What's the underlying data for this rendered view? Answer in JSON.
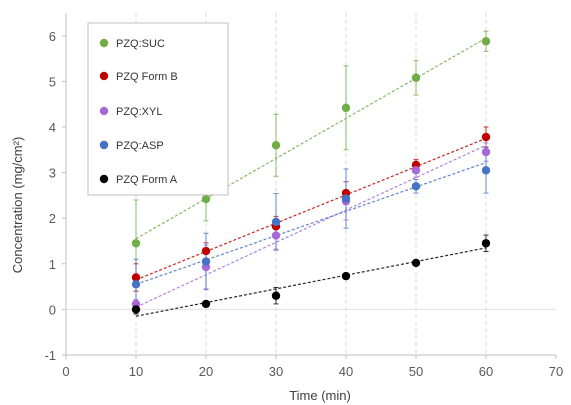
{
  "chart_data": {
    "type": "scatter",
    "xlabel": "Time (min)",
    "ylabel": "Concentration (mg/cm²)",
    "xlim": [
      0,
      70
    ],
    "ylim": [
      -1,
      6.5
    ],
    "x_ticks": [
      "0",
      "10",
      "20",
      "30",
      "40",
      "50",
      "60",
      "70"
    ],
    "y_ticks": [
      "-1",
      "0",
      "1",
      "2",
      "3",
      "4",
      "5",
      "6"
    ],
    "grid": "vertical dashed",
    "legend_position": "top-left",
    "x": [
      10,
      20,
      30,
      40,
      50,
      60
    ],
    "series": [
      {
        "name": "PZQ:SUC",
        "color": "#70ad47",
        "values": [
          1.45,
          2.42,
          3.6,
          4.42,
          5.08,
          5.88
        ],
        "errors": [
          0.95,
          0.48,
          0.68,
          0.92,
          0.38,
          0.22
        ],
        "trend": [
          1.55,
          5.95
        ]
      },
      {
        "name": "PZQ  Form  B",
        "color": "#c00000",
        "values": [
          0.7,
          1.28,
          1.82,
          2.55,
          3.17,
          3.78
        ],
        "errors": [
          0.3,
          0.18,
          0.22,
          0.25,
          0.12,
          0.22
        ],
        "trend": [
          0.65,
          3.75
        ]
      },
      {
        "name": "PZQ:XYL",
        "color": "#a66ad8",
        "values": [
          0.12,
          0.93,
          1.62,
          2.38,
          3.05,
          3.45
        ],
        "errors": [
          0.1,
          0.48,
          0.3,
          0.42,
          0.15,
          0.2
        ],
        "trend": [
          0.05,
          3.6
        ]
      },
      {
        "name": "PZQ:ASP",
        "color": "#4472c4",
        "values": [
          0.55,
          1.05,
          1.92,
          2.43,
          2.7,
          3.05
        ],
        "errors": [
          0.55,
          0.62,
          0.62,
          0.65,
          0.15,
          0.5
        ],
        "trend": [
          0.55,
          3.22
        ]
      },
      {
        "name": "PZQ Form A",
        "color": "#000000",
        "values": [
          0.0,
          0.12,
          0.3,
          0.73,
          1.02,
          1.45
        ],
        "errors": [
          0.1,
          0.05,
          0.18,
          0.06,
          0.05,
          0.18
        ],
        "trend": [
          -0.15,
          1.35
        ]
      }
    ]
  }
}
